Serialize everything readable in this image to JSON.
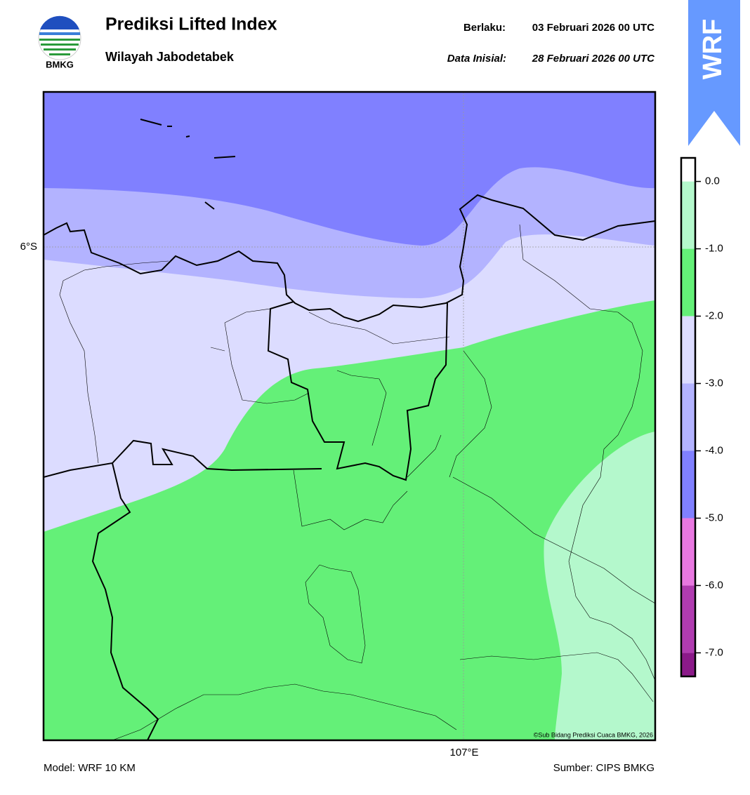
{
  "header": {
    "logo_text": "BMKG",
    "title": "Prediksi Lifted Index",
    "subtitle": "Wilayah Jabodetabek",
    "valid_label": "Berlaku:",
    "valid_date": "03 Februari 2026 00 UTC",
    "init_label": "Data Inisial:",
    "init_date": "28 Februari 2026 00 UTC",
    "badge": "WRF"
  },
  "map": {
    "lat_label": "6°S",
    "lon_label": "107°E",
    "credit": "©Sub Bidang Prediksi Cuaca BMKG, 2026"
  },
  "colorbar": {
    "lim": [
      -7.35,
      0.35
    ],
    "bins": [
      -7.35,
      -7,
      -6,
      -5,
      -4,
      -3,
      -2,
      -1,
      0,
      0.35
    ],
    "colors": [
      "#8b1a89",
      "#b03cb0",
      "#e878e0",
      "#8080ff",
      "#b3b3ff",
      "#dcdcff",
      "#64f078",
      "#b4f8cc",
      "#ffffff"
    ],
    "ticks": [
      {
        "value": 0,
        "label": "0.0"
      },
      {
        "value": -1,
        "label": "-1.0"
      },
      {
        "value": -2,
        "label": "-2.0"
      },
      {
        "value": -3,
        "label": "-3.0"
      },
      {
        "value": -4,
        "label": "-4.0"
      },
      {
        "value": -5,
        "label": "-5.0"
      },
      {
        "value": -6,
        "label": "-6.0"
      },
      {
        "value": -7,
        "label": "-7.0"
      }
    ]
  },
  "footer": {
    "model": "Model: WRF 10 KM",
    "source": "Sumber: CIPS BMKG"
  }
}
